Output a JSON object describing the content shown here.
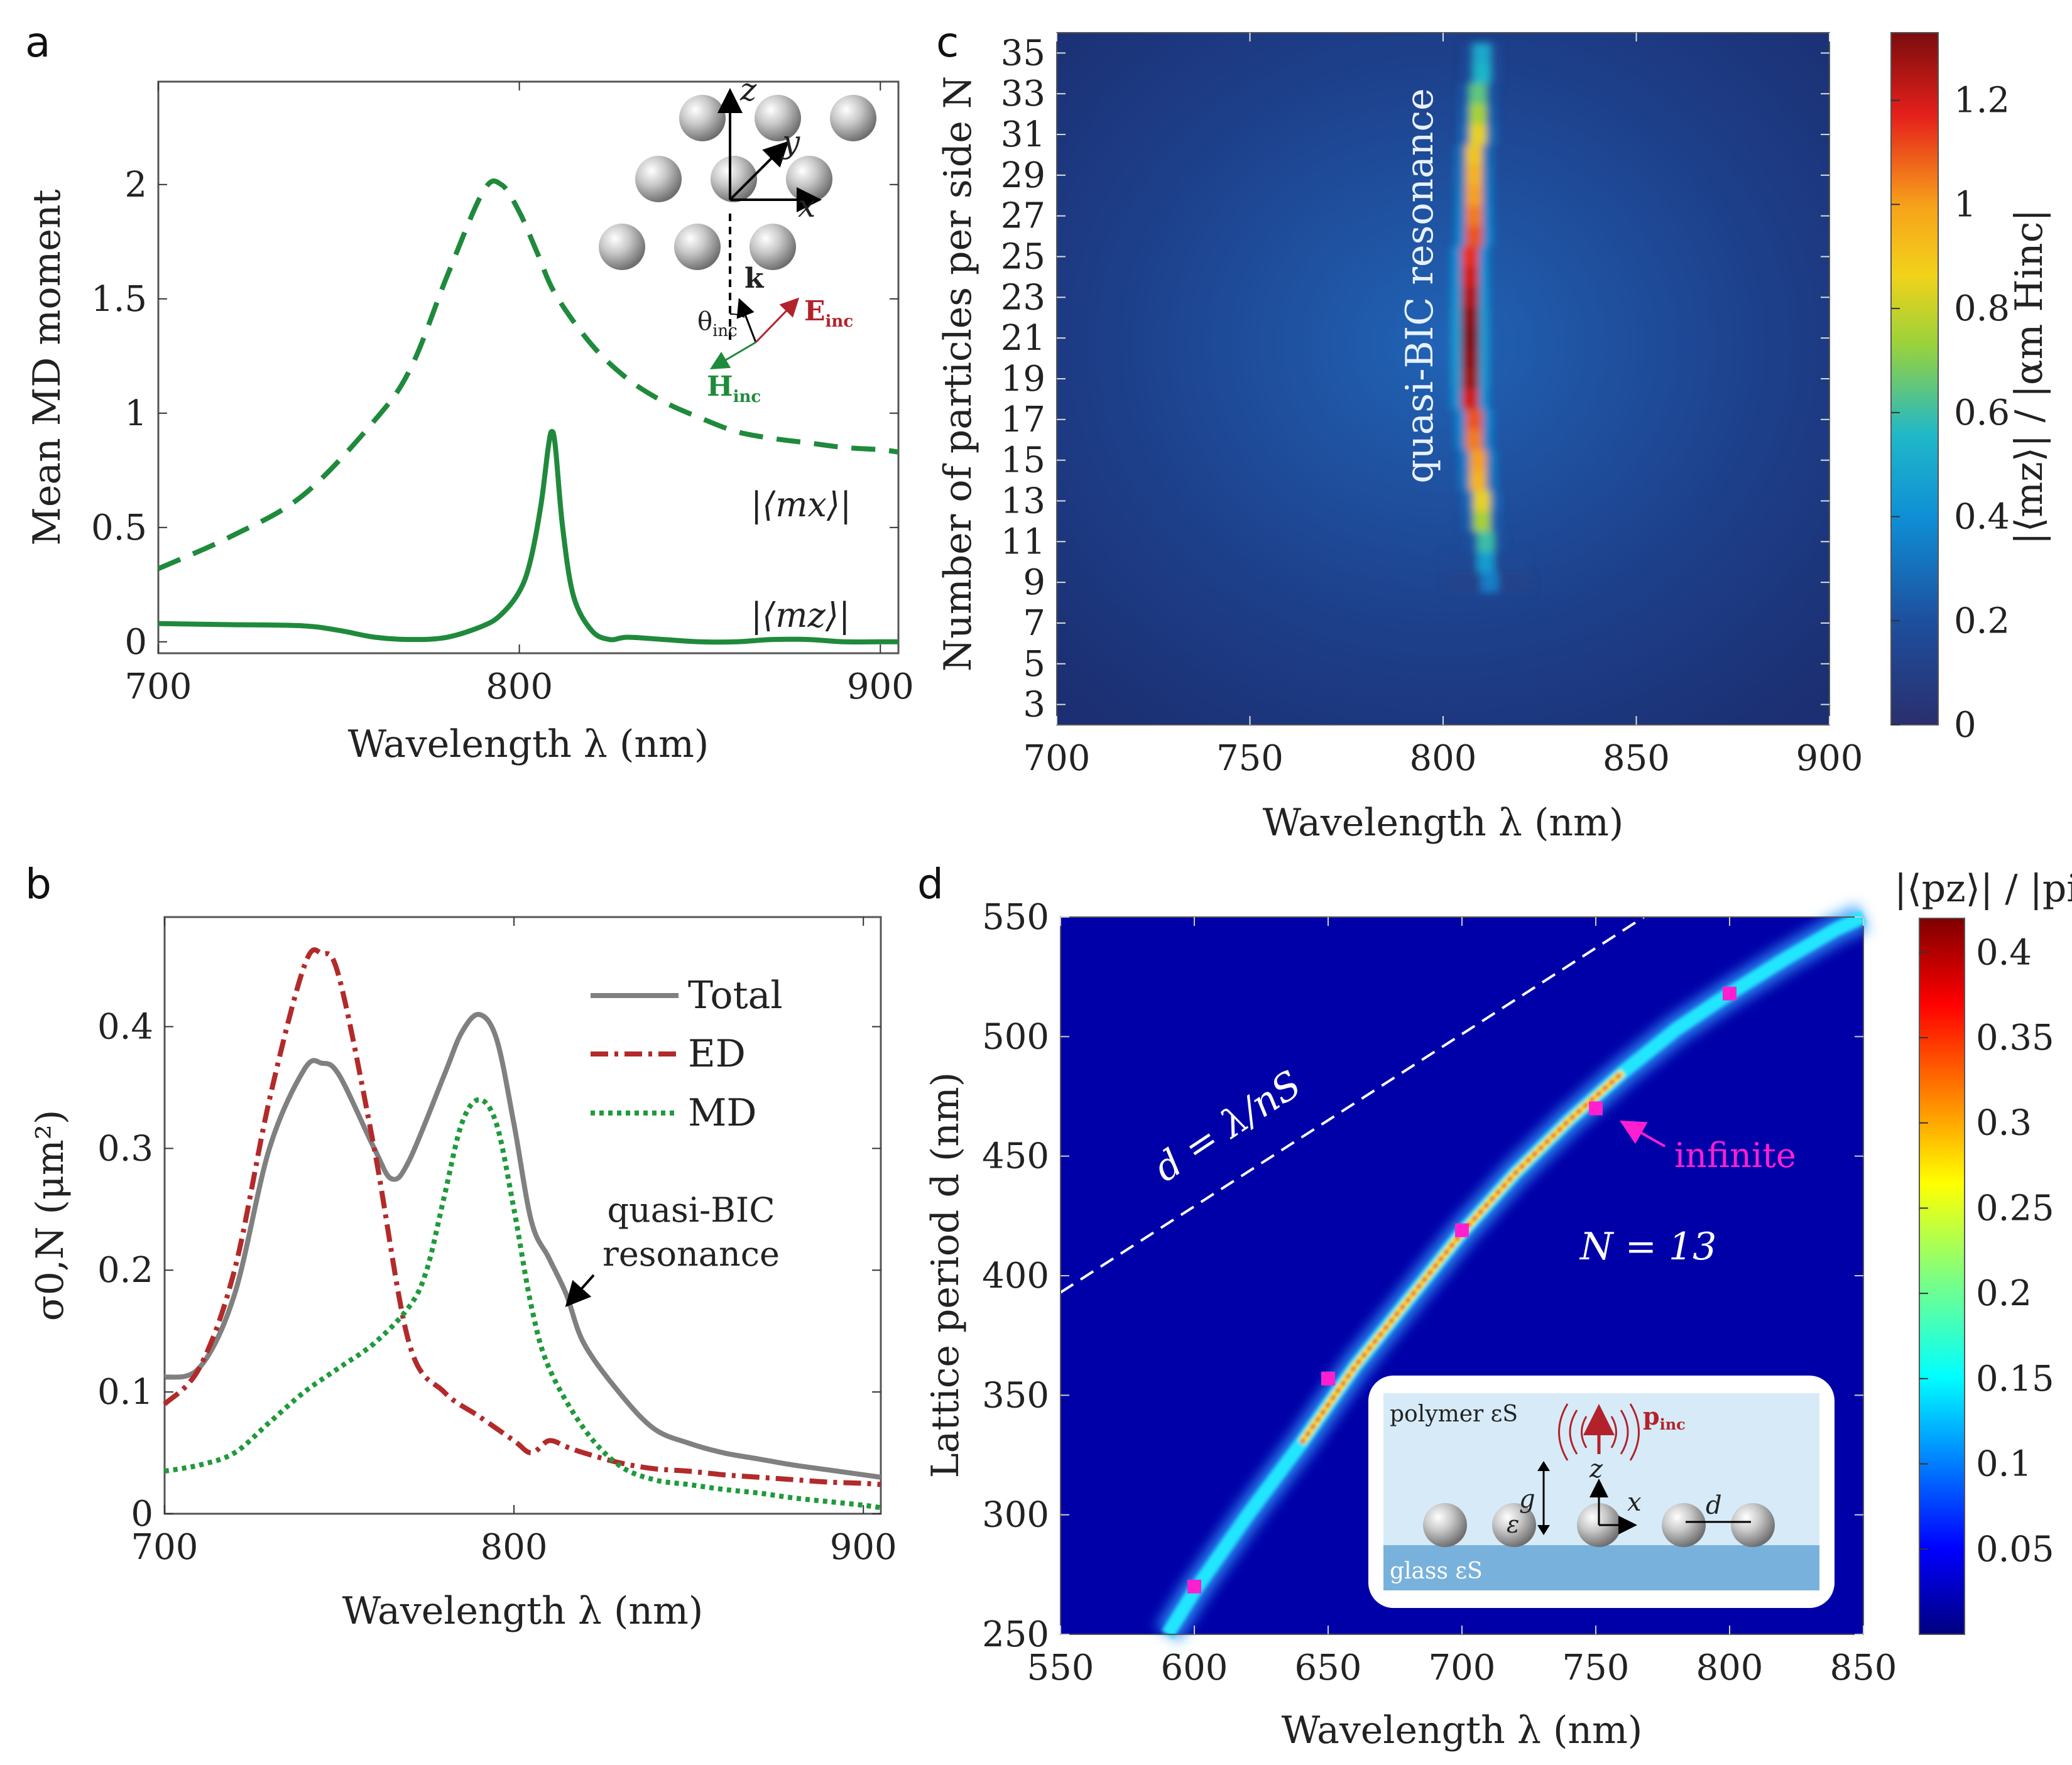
{
  "panels": {
    "a": {
      "label": "a"
    },
    "b": {
      "label": "b"
    },
    "c": {
      "label": "c"
    },
    "d": {
      "label": "d"
    }
  },
  "chart_data": [
    {
      "panel": "a",
      "type": "line",
      "xlabel": "Wavelength λ (nm)",
      "ylabel": "Mean MD moment",
      "xlim": [
        700,
        905
      ],
      "ylim": [
        -0.05,
        2.45
      ],
      "xticks": [
        700,
        800,
        900
      ],
      "yticks": [
        0,
        0.5,
        1,
        1.5,
        2
      ],
      "ytick_labels": [
        "0",
        "0.5",
        "1",
        "1.5",
        "2"
      ],
      "series": [
        {
          "name": "|⟨mx⟩|",
          "style": "dashed",
          "color": "#1f8a3c",
          "x": [
            700,
            720,
            740,
            760,
            770,
            780,
            790,
            795,
            800,
            805,
            810,
            820,
            830,
            840,
            850,
            860,
            870,
            880,
            890,
            900,
            905
          ],
          "y": [
            0.32,
            0.46,
            0.64,
            0.97,
            1.2,
            1.6,
            1.97,
            2.0,
            1.88,
            1.7,
            1.52,
            1.3,
            1.15,
            1.05,
            0.98,
            0.92,
            0.89,
            0.87,
            0.85,
            0.84,
            0.83
          ]
        },
        {
          "name": "|⟨mz⟩|",
          "style": "solid",
          "color": "#1f8a3c",
          "x": [
            700,
            720,
            740,
            750,
            760,
            770,
            780,
            790,
            795,
            800,
            803,
            806,
            808,
            809,
            810,
            812,
            815,
            820,
            825,
            830,
            840,
            850,
            860,
            870,
            880,
            890,
            900,
            905
          ],
          "y": [
            0.08,
            0.075,
            0.07,
            0.05,
            0.02,
            0.01,
            0.02,
            0.07,
            0.12,
            0.22,
            0.35,
            0.6,
            0.85,
            0.92,
            0.85,
            0.5,
            0.2,
            0.05,
            0.01,
            0.02,
            0.01,
            0.0,
            0.0,
            0.01,
            0.01,
            0.0,
            0.0,
            0.0
          ]
        }
      ],
      "annotations": [
        "|⟨mx⟩|",
        "|⟨mz⟩|"
      ],
      "inset_labels": {
        "z": "z",
        "y": "y",
        "x": "x",
        "k": "k",
        "theta": "θ",
        "theta_sub": "inc",
        "E": "E",
        "E_sub": "inc",
        "H": "H",
        "H_sub": "inc"
      }
    },
    {
      "panel": "b",
      "type": "line",
      "xlabel": "Wavelength λ (nm)",
      "ylabel": "σ0,N (μm²)",
      "xlim": [
        700,
        905
      ],
      "ylim": [
        0,
        0.49
      ],
      "xticks": [
        700,
        800,
        900
      ],
      "yticks": [
        0,
        0.1,
        0.2,
        0.3,
        0.4
      ],
      "ytick_labels": [
        "0",
        "0.1",
        "0.2",
        "0.3",
        "0.4"
      ],
      "legend": [
        "Total",
        "ED",
        "MD"
      ],
      "legend_loc": "top-right",
      "series": [
        {
          "name": "Total",
          "style": "solid",
          "color": "#808080",
          "x": [
            700,
            710,
            720,
            730,
            740,
            745,
            750,
            760,
            765,
            770,
            780,
            785,
            790,
            795,
            800,
            805,
            810,
            815,
            820,
            830,
            840,
            850,
            860,
            870,
            880,
            890,
            900,
            905
          ],
          "y": [
            0.112,
            0.12,
            0.18,
            0.3,
            0.365,
            0.37,
            0.36,
            0.3,
            0.275,
            0.29,
            0.36,
            0.395,
            0.41,
            0.39,
            0.32,
            0.24,
            0.21,
            0.18,
            0.14,
            0.1,
            0.07,
            0.058,
            0.05,
            0.045,
            0.04,
            0.036,
            0.032,
            0.03
          ]
        },
        {
          "name": "ED",
          "style": "dashdot",
          "color": "#b22a2a",
          "x": [
            700,
            710,
            720,
            730,
            740,
            745,
            750,
            760,
            770,
            780,
            790,
            800,
            805,
            810,
            815,
            820,
            830,
            840,
            850,
            860,
            870,
            880,
            890,
            900,
            905
          ],
          "y": [
            0.09,
            0.12,
            0.2,
            0.34,
            0.45,
            0.46,
            0.44,
            0.3,
            0.14,
            0.1,
            0.08,
            0.06,
            0.05,
            0.06,
            0.055,
            0.05,
            0.042,
            0.037,
            0.035,
            0.032,
            0.03,
            0.028,
            0.026,
            0.025,
            0.024
          ]
        },
        {
          "name": "MD",
          "style": "dotted",
          "color": "#1f9a3c",
          "x": [
            700,
            710,
            720,
            730,
            740,
            750,
            760,
            770,
            775,
            780,
            785,
            790,
            795,
            800,
            805,
            810,
            820,
            830,
            840,
            850,
            860,
            870,
            880,
            890,
            900,
            905
          ],
          "y": [
            0.035,
            0.04,
            0.05,
            0.075,
            0.1,
            0.12,
            0.14,
            0.17,
            0.2,
            0.26,
            0.32,
            0.34,
            0.32,
            0.25,
            0.17,
            0.12,
            0.07,
            0.04,
            0.028,
            0.024,
            0.02,
            0.017,
            0.013,
            0.01,
            0.007,
            0.005
          ]
        }
      ],
      "annotation": [
        "quasi-BIC",
        "resonance"
      ]
    },
    {
      "panel": "c",
      "type": "heatmap",
      "xlabel": "Wavelength λ (nm)",
      "ylabel": "Number of particles per side N",
      "xlim": [
        700,
        900
      ],
      "ylim": [
        2,
        36
      ],
      "xticks": [
        700,
        750,
        800,
        850,
        900
      ],
      "yticks": [
        3,
        5,
        7,
        9,
        11,
        13,
        15,
        17,
        19,
        21,
        23,
        25,
        27,
        29,
        31,
        33,
        35
      ],
      "rows_N": [
        3,
        4,
        5,
        6,
        7,
        8,
        9,
        10,
        11,
        12,
        13,
        14,
        15,
        16,
        17,
        18,
        19,
        20,
        21,
        22,
        23,
        24,
        25,
        26,
        27,
        28,
        29,
        30,
        31,
        32,
        33,
        34,
        35
      ],
      "peak_wavelength_nm": [
        0,
        0,
        0,
        0,
        0,
        0,
        812,
        811,
        811,
        810,
        810,
        809,
        809,
        808,
        808,
        807,
        807,
        807,
        807,
        807,
        807,
        807,
        807,
        808,
        808,
        808,
        808,
        808,
        809,
        809,
        809,
        810,
        810
      ],
      "peak_value": [
        0,
        0,
        0,
        0,
        0.05,
        0.08,
        0.35,
        0.45,
        0.6,
        0.75,
        0.85,
        0.95,
        1.0,
        1.05,
        1.1,
        1.2,
        1.28,
        1.3,
        1.32,
        1.3,
        1.25,
        1.2,
        1.15,
        1.1,
        1.05,
        1.0,
        0.95,
        0.9,
        0.85,
        0.75,
        0.65,
        0.55,
        0.5
      ],
      "colorbar": {
        "label": "|⟨mz⟩| / |αm Hinc|",
        "ticks": [
          0,
          0.2,
          0.4,
          0.6,
          0.8,
          1,
          1.2
        ],
        "tick_labels": [
          "0",
          "0.2",
          "0.4",
          "0.6",
          "0.8",
          "1",
          "1.2"
        ],
        "range": [
          0,
          1.33
        ],
        "colormap": "jet"
      },
      "annotation": "quasi-BIC resonance"
    },
    {
      "panel": "d",
      "type": "heatmap",
      "xlabel": "Wavelength λ (nm)",
      "ylabel": "Lattice period d (nm)",
      "xlim": [
        550,
        850
      ],
      "ylim": [
        250,
        550
      ],
      "xticks": [
        550,
        600,
        650,
        700,
        750,
        800,
        850
      ],
      "yticks": [
        250,
        300,
        350,
        400,
        450,
        500,
        550
      ],
      "resonance_curve": {
        "lambda": [
          590,
          600,
          620,
          640,
          660,
          680,
          700,
          720,
          740,
          760,
          780,
          800,
          820,
          840,
          850
        ],
        "d": [
          250,
          268,
          300,
          330,
          362,
          390,
          418,
          443,
          465,
          485,
          503,
          518,
          532,
          545,
          550
        ]
      },
      "infinite_points": {
        "lambda": [
          600,
          650,
          700,
          750,
          800
        ],
        "d": [
          270,
          357,
          419,
          470,
          518
        ],
        "label": "infinite",
        "color": "#ff1fd0"
      },
      "rayleigh_line": {
        "label": "d = λ/nS",
        "lambda": [
          550,
          768
        ],
        "d": [
          393,
          550
        ]
      },
      "text_N": "N = 13",
      "colorbar": {
        "label": "|⟨pz⟩| / |pinc|",
        "ticks": [
          0.05,
          0.1,
          0.15,
          0.2,
          0.25,
          0.3,
          0.35,
          0.4
        ],
        "tick_labels": [
          "0.05",
          "0.1",
          "0.15",
          "0.2",
          "0.25",
          "0.3",
          "0.35",
          "0.4"
        ],
        "range": [
          0,
          0.42
        ],
        "colormap": "jet"
      },
      "inset": {
        "polymer": "polymer εS",
        "glass": "glass εS",
        "g": "g",
        "z": "z",
        "x": "x",
        "d": "d",
        "eps": "ε",
        "p": "p",
        "p_sub": "inc"
      }
    }
  ]
}
